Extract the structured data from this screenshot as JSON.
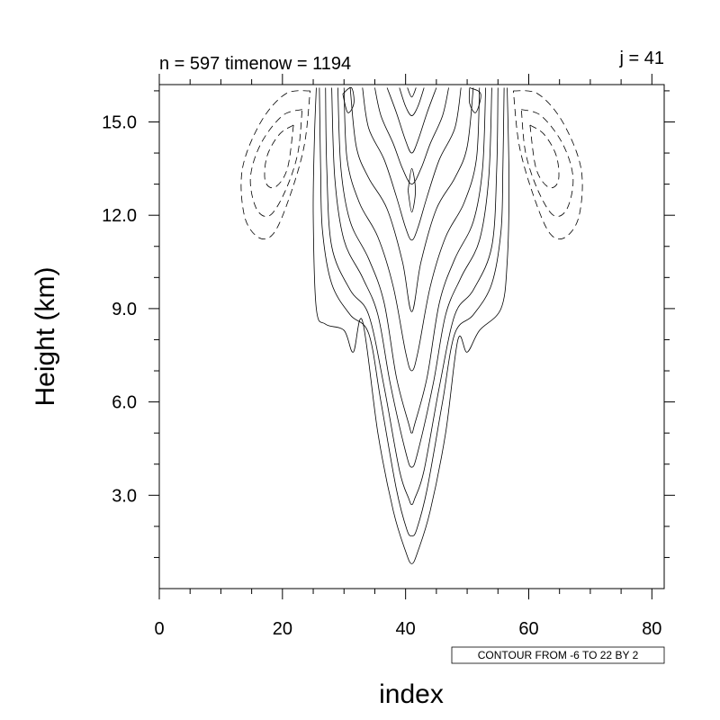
{
  "chart_data": {
    "type": "contour",
    "left_string": "n = 597 timenow = 1194",
    "right_string": "j = 41",
    "xlabel": "index",
    "ylabel": "Height (km)",
    "xlim": [
      0,
      82
    ],
    "ylim": [
      0,
      16.2
    ],
    "x_ticks": [
      0,
      20,
      40,
      60,
      80
    ],
    "x_tick_labels": [
      "0",
      "20",
      "40",
      "60",
      "80"
    ],
    "y_ticks": [
      3,
      6,
      9,
      12,
      15
    ],
    "y_tick_labels": [
      "3.0",
      "6.0",
      "9.0",
      "12.0",
      "15.0"
    ],
    "contour_info": "CONTOUR FROM -6 TO 22 BY 2",
    "contour_levels": {
      "min": -6,
      "max": 22,
      "interval": 2
    },
    "negative_line_style": "dashed",
    "positive_line_style": "solid",
    "max_center_x": 41,
    "max_top_y": 16.1,
    "plume_base": {
      "x": 41,
      "y": 0.8
    },
    "positive_contours": [
      {
        "level": 0,
        "points": [
          [
            25.5,
            16.1
          ],
          [
            25.2,
            14.5
          ],
          [
            25.0,
            12.0
          ],
          [
            25.5,
            9.0
          ],
          [
            27,
            8.5
          ],
          [
            30,
            8.3
          ],
          [
            31.5,
            7.6
          ],
          [
            33,
            8.6
          ],
          [
            35.5,
            5.0
          ],
          [
            38,
            2.5
          ],
          [
            40,
            1.2
          ],
          [
            41,
            0.8
          ],
          [
            42,
            1.2
          ],
          [
            44,
            2.5
          ],
          [
            46.5,
            5.0
          ],
          [
            48.5,
            8.0
          ],
          [
            50,
            7.6
          ],
          [
            52,
            8.3
          ],
          [
            55.5,
            9.0
          ],
          [
            56.5,
            10.5
          ],
          [
            56.8,
            13.0
          ],
          [
            56.5,
            16.1
          ]
        ]
      },
      {
        "level": 2,
        "points": [
          [
            26,
            16.1
          ],
          [
            26.2,
            13.5
          ],
          [
            26.5,
            11.5
          ],
          [
            28,
            9.8
          ],
          [
            31,
            8.8
          ],
          [
            34,
            8.2
          ],
          [
            36,
            6.0
          ],
          [
            38.5,
            3.2
          ],
          [
            40.2,
            1.9
          ],
          [
            41,
            1.7
          ],
          [
            41.8,
            1.9
          ],
          [
            43.5,
            3.2
          ],
          [
            46,
            6.0
          ],
          [
            48,
            8.2
          ],
          [
            51,
            8.8
          ],
          [
            54,
            9.8
          ],
          [
            55.5,
            11.5
          ],
          [
            55.8,
            13.5
          ],
          [
            56,
            16.1
          ]
        ]
      },
      {
        "level": 4,
        "points": [
          [
            27,
            16.1
          ],
          [
            27.2,
            13.5
          ],
          [
            28,
            11.0
          ],
          [
            31,
            9.6
          ],
          [
            34,
            8.8
          ],
          [
            36.5,
            6.5
          ],
          [
            39,
            3.8
          ],
          [
            40.5,
            2.9
          ],
          [
            41,
            2.7
          ],
          [
            41.5,
            2.9
          ],
          [
            43,
            3.8
          ],
          [
            45.5,
            6.5
          ],
          [
            48,
            8.8
          ],
          [
            51,
            9.6
          ],
          [
            54,
            11.0
          ],
          [
            54.8,
            13.5
          ],
          [
            55,
            16.1
          ]
        ]
      },
      {
        "level": 6,
        "points": [
          [
            28,
            16.1
          ],
          [
            28.5,
            13.2
          ],
          [
            30,
            11.2
          ],
          [
            33,
            10.0
          ],
          [
            35.5,
            8.8
          ],
          [
            37.5,
            6.6
          ],
          [
            40,
            4.4
          ],
          [
            41,
            3.9
          ],
          [
            42,
            4.4
          ],
          [
            44.5,
            6.6
          ],
          [
            46.5,
            8.8
          ],
          [
            49,
            10.0
          ],
          [
            52,
            11.2
          ],
          [
            53.5,
            13.2
          ],
          [
            54,
            16.1
          ]
        ]
      },
      {
        "level": 8,
        "points": [
          [
            29,
            16.1
          ],
          [
            29.5,
            13.5
          ],
          [
            31,
            11.8
          ],
          [
            34,
            10.6
          ],
          [
            36.5,
            9.2
          ],
          [
            38.5,
            6.8
          ],
          [
            40.5,
            5.3
          ],
          [
            41,
            5.0
          ],
          [
            41.5,
            5.3
          ],
          [
            43.5,
            6.8
          ],
          [
            45.5,
            9.2
          ],
          [
            48,
            10.6
          ],
          [
            51,
            11.8
          ],
          [
            52.5,
            13.5
          ],
          [
            53,
            16.1
          ]
        ]
      },
      {
        "level": 10,
        "points": [
          [
            30,
            16.1
          ],
          [
            30.5,
            13.8
          ],
          [
            32.5,
            12.4
          ],
          [
            35.5,
            11.3
          ],
          [
            38,
            9.7
          ],
          [
            40,
            7.6
          ],
          [
            41,
            7.0
          ],
          [
            42,
            7.6
          ],
          [
            44,
            9.7
          ],
          [
            46.5,
            11.3
          ],
          [
            49.5,
            12.4
          ],
          [
            51.5,
            13.8
          ],
          [
            52,
            16.1
          ]
        ]
      },
      {
        "level": 12,
        "points": [
          [
            31,
            16.1
          ],
          [
            32,
            14.2
          ],
          [
            34,
            13.2
          ],
          [
            37,
            12.2
          ],
          [
            39.5,
            10.5
          ],
          [
            41,
            8.9
          ],
          [
            42.5,
            10.5
          ],
          [
            45,
            12.2
          ],
          [
            48,
            13.2
          ],
          [
            50,
            14.2
          ],
          [
            51,
            16.1
          ]
        ]
      },
      {
        "level": 14,
        "points": [
          [
            33,
            16.1
          ],
          [
            34,
            14.8
          ],
          [
            36.5,
            13.8
          ],
          [
            38.5,
            12.6
          ],
          [
            40,
            11.6
          ],
          [
            41,
            11.2
          ],
          [
            42,
            11.6
          ],
          [
            43.5,
            12.6
          ],
          [
            45.5,
            13.8
          ],
          [
            48,
            14.8
          ],
          [
            49,
            16.1
          ]
        ]
      },
      {
        "level": 16,
        "points": [
          [
            35,
            16.1
          ],
          [
            36,
            15.2
          ],
          [
            38,
            14.3
          ],
          [
            39.5,
            13.5
          ],
          [
            41,
            13.0
          ],
          [
            42.5,
            13.5
          ],
          [
            44,
            14.3
          ],
          [
            46,
            15.2
          ],
          [
            47,
            16.1
          ]
        ]
      },
      {
        "level": 18,
        "points": [
          [
            37,
            16.1
          ],
          [
            38.5,
            15.3
          ],
          [
            40,
            14.4
          ],
          [
            41,
            14.0
          ],
          [
            42,
            14.4
          ],
          [
            43.5,
            15.3
          ],
          [
            45,
            16.1
          ]
        ]
      },
      {
        "level": 20,
        "points": [
          [
            39,
            16.1
          ],
          [
            40,
            15.5
          ],
          [
            41,
            15.2
          ],
          [
            42,
            15.5
          ],
          [
            43,
            16.1
          ]
        ]
      },
      {
        "level": 22,
        "points": [
          [
            40.3,
            16.1
          ],
          [
            41,
            15.8
          ],
          [
            41.7,
            16.1
          ]
        ]
      }
    ],
    "positive_closed_contours": [
      {
        "level": 12,
        "points": [
          [
            40.4,
            12.8
          ],
          [
            41,
            12.1
          ],
          [
            41.6,
            12.8
          ],
          [
            41,
            13.5
          ],
          [
            40.4,
            12.8
          ]
        ]
      },
      {
        "level": 10,
        "points": [
          [
            29.8,
            15.9
          ],
          [
            30.6,
            15.3
          ],
          [
            31.6,
            15.6
          ],
          [
            31.2,
            16.1
          ],
          [
            29.8,
            15.9
          ]
        ]
      },
      {
        "level": 10,
        "points": [
          [
            50.4,
            16.1
          ],
          [
            50.4,
            15.6
          ],
          [
            51.4,
            15.3
          ],
          [
            52.2,
            15.9
          ],
          [
            50.4,
            16.1
          ]
        ]
      }
    ],
    "negative_contours": [
      {
        "level": -2,
        "points": [
          [
            24.5,
            16.0
          ],
          [
            20.5,
            15.9
          ],
          [
            16.5,
            15.0
          ],
          [
            13.5,
            13.5
          ],
          [
            13.8,
            12.0
          ],
          [
            16.0,
            11.3
          ],
          [
            18.5,
            11.4
          ],
          [
            21.0,
            12.5
          ],
          [
            23.5,
            14.2
          ],
          [
            24.5,
            16.0
          ]
        ]
      },
      {
        "level": -4,
        "points": [
          [
            23.2,
            15.4
          ],
          [
            20.0,
            15.2
          ],
          [
            16.5,
            14.3
          ],
          [
            14.8,
            13.2
          ],
          [
            15.8,
            12.2
          ],
          [
            18.0,
            12.0
          ],
          [
            20.5,
            12.8
          ],
          [
            22.5,
            14.0
          ],
          [
            23.2,
            15.4
          ]
        ]
      },
      {
        "level": -6,
        "points": [
          [
            21.8,
            14.9
          ],
          [
            19.5,
            14.6
          ],
          [
            17.5,
            13.9
          ],
          [
            17.2,
            13.1
          ],
          [
            18.8,
            12.9
          ],
          [
            20.8,
            13.5
          ],
          [
            21.8,
            14.9
          ]
        ]
      },
      {
        "level": -2,
        "points": [
          [
            57.5,
            16.0
          ],
          [
            61.5,
            15.9
          ],
          [
            65.5,
            15.0
          ],
          [
            68.5,
            13.5
          ],
          [
            68.2,
            12.0
          ],
          [
            66.0,
            11.3
          ],
          [
            63.5,
            11.4
          ],
          [
            61.0,
            12.5
          ],
          [
            58.5,
            14.2
          ],
          [
            57.5,
            16.0
          ]
        ]
      },
      {
        "level": -4,
        "points": [
          [
            58.8,
            15.4
          ],
          [
            62.0,
            15.2
          ],
          [
            65.5,
            14.3
          ],
          [
            67.2,
            13.2
          ],
          [
            66.2,
            12.2
          ],
          [
            64.0,
            12.0
          ],
          [
            61.5,
            12.8
          ],
          [
            59.5,
            14.0
          ],
          [
            58.8,
            15.4
          ]
        ]
      },
      {
        "level": -6,
        "points": [
          [
            60.2,
            14.9
          ],
          [
            62.5,
            14.6
          ],
          [
            64.5,
            13.9
          ],
          [
            64.8,
            13.1
          ],
          [
            63.2,
            12.9
          ],
          [
            61.2,
            13.5
          ],
          [
            60.2,
            14.9
          ]
        ]
      }
    ]
  }
}
